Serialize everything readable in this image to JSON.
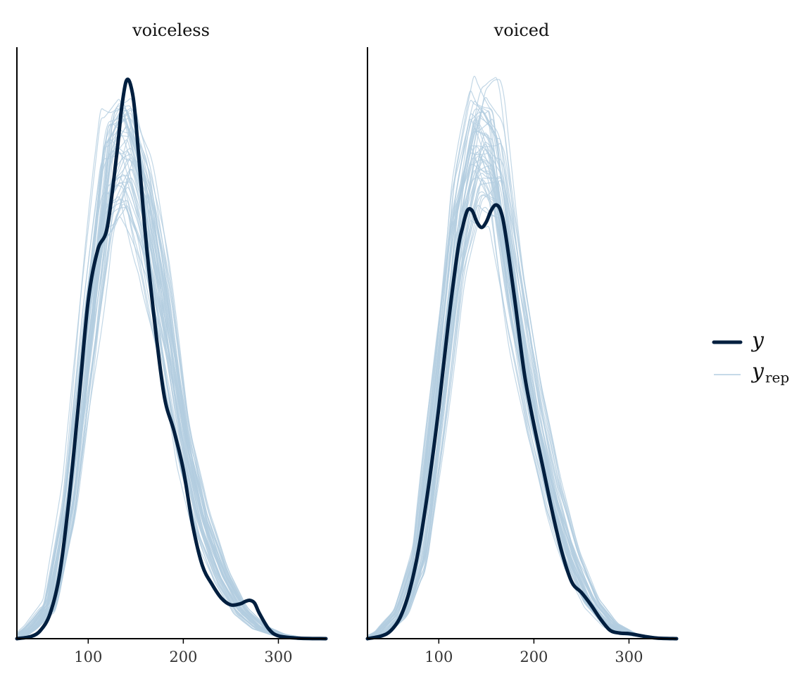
{
  "chart_data": {
    "type": "line",
    "chart_kind": "posterior predictive density overlay",
    "facets": [
      {
        "title": "voiceless",
        "xlim": [
          25,
          350
        ],
        "ylim": [
          0,
          1.05
        ],
        "xticks": [
          100,
          200,
          300
        ],
        "y": {
          "x": [
            25,
            40,
            50,
            60,
            70,
            80,
            90,
            100,
            110,
            120,
            130,
            135,
            140,
            145,
            150,
            160,
            170,
            180,
            190,
            200,
            210,
            220,
            230,
            240,
            250,
            260,
            265,
            270,
            275,
            280,
            290,
            300,
            320,
            350
          ],
          "density": [
            0,
            0.004,
            0.015,
            0.045,
            0.115,
            0.25,
            0.42,
            0.6,
            0.69,
            0.73,
            0.86,
            0.94,
            0.99,
            0.98,
            0.92,
            0.72,
            0.56,
            0.43,
            0.37,
            0.3,
            0.2,
            0.13,
            0.097,
            0.072,
            0.06,
            0.062,
            0.066,
            0.068,
            0.063,
            0.045,
            0.017,
            0.005,
            0.001,
            0
          ]
        },
        "yrep_peak": {
          "x": [
            25,
            40,
            60,
            80,
            100,
            120,
            140,
            160,
            180,
            200,
            220,
            240,
            260,
            280,
            300,
            320,
            350
          ],
          "density": [
            0,
            0.02,
            0.06,
            0.24,
            0.54,
            0.82,
            0.86,
            0.75,
            0.56,
            0.34,
            0.2,
            0.11,
            0.05,
            0.02,
            0.007,
            0.002,
            0
          ]
        }
      },
      {
        "title": "voiced",
        "xlim": [
          25,
          350
        ],
        "ylim": [
          0,
          1.05
        ],
        "xticks": [
          100,
          200,
          300
        ],
        "y": {
          "x": [
            25,
            40,
            50,
            60,
            70,
            80,
            90,
            100,
            110,
            120,
            125,
            130,
            135,
            140,
            145,
            150,
            155,
            160,
            165,
            170,
            180,
            190,
            200,
            210,
            220,
            230,
            240,
            250,
            260,
            270,
            280,
            290,
            300,
            310,
            320,
            330,
            350
          ],
          "density": [
            0,
            0.005,
            0.015,
            0.04,
            0.09,
            0.17,
            0.28,
            0.41,
            0.56,
            0.69,
            0.73,
            0.76,
            0.76,
            0.74,
            0.73,
            0.74,
            0.76,
            0.77,
            0.76,
            0.72,
            0.6,
            0.47,
            0.38,
            0.3,
            0.22,
            0.15,
            0.1,
            0.082,
            0.06,
            0.035,
            0.015,
            0.01,
            0.009,
            0.006,
            0.003,
            0.001,
            0
          ]
        },
        "yrep_peak": {
          "x": [
            25,
            40,
            60,
            80,
            100,
            120,
            140,
            160,
            180,
            200,
            220,
            240,
            260,
            280,
            300,
            320,
            350
          ],
          "density": [
            0,
            0.01,
            0.045,
            0.14,
            0.42,
            0.72,
            0.87,
            0.84,
            0.6,
            0.4,
            0.25,
            0.14,
            0.065,
            0.025,
            0.008,
            0.003,
            0
          ]
        }
      }
    ],
    "replicate_draws": 50,
    "grid": false,
    "legend": {
      "placement": "right",
      "entries": [
        {
          "label": "y",
          "color": "#011f3f"
        },
        {
          "label": "y",
          "subscript": "rep",
          "color": "#b3cde0"
        }
      ]
    }
  }
}
